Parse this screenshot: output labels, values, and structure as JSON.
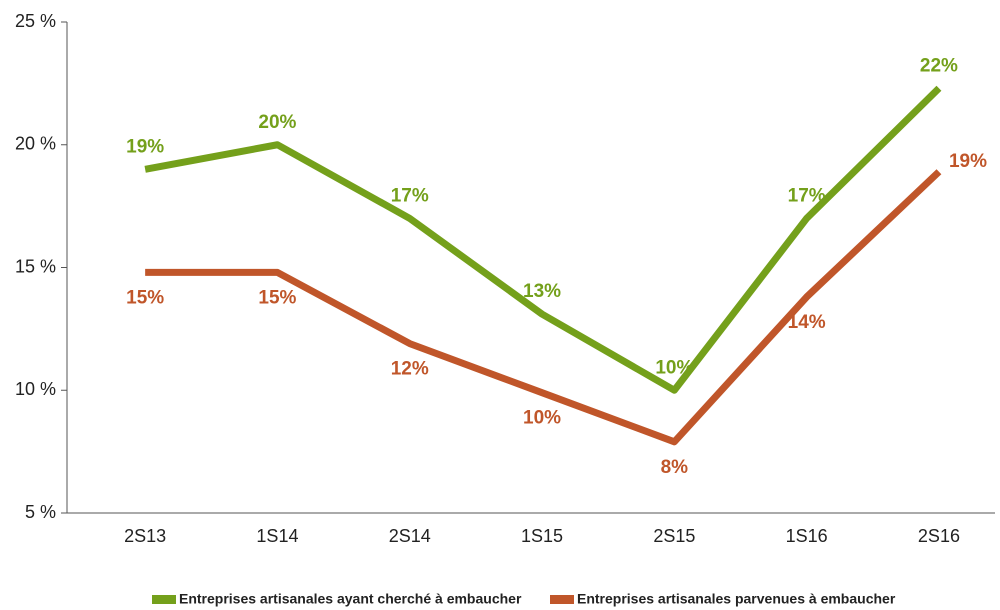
{
  "chart_data": {
    "type": "line",
    "categories": [
      "2S13",
      "1S14",
      "2S14",
      "1S15",
      "2S15",
      "1S16",
      "2S16"
    ],
    "series": [
      {
        "name": "Entreprises artisanales ayant cherché à embaucher",
        "color": "#74a01b",
        "values": [
          19.0,
          20.0,
          17.0,
          13.1,
          10.0,
          17.0,
          22.3
        ],
        "value_labels": [
          "19%",
          "20%",
          "17%",
          "13%",
          "10%",
          "17%",
          "22%"
        ]
      },
      {
        "name": "Entreprises artisanales parvenues à embaucher",
        "color": "#c0562a",
        "values": [
          14.8,
          14.8,
          11.9,
          9.9,
          7.9,
          13.8,
          18.9
        ],
        "value_labels": [
          "15%",
          "15%",
          "12%",
          "10%",
          "8%",
          "14%",
          "19%"
        ]
      }
    ],
    "ylim": [
      5,
      25
    ],
    "yticks": [
      {
        "value": 5,
        "label": "5 %"
      },
      {
        "value": 10,
        "label": "10 %"
      },
      {
        "value": 15,
        "label": "15 %"
      },
      {
        "value": 20,
        "label": "20 %"
      },
      {
        "value": 25,
        "label": "25 %"
      }
    ],
    "legend": "bottom"
  }
}
